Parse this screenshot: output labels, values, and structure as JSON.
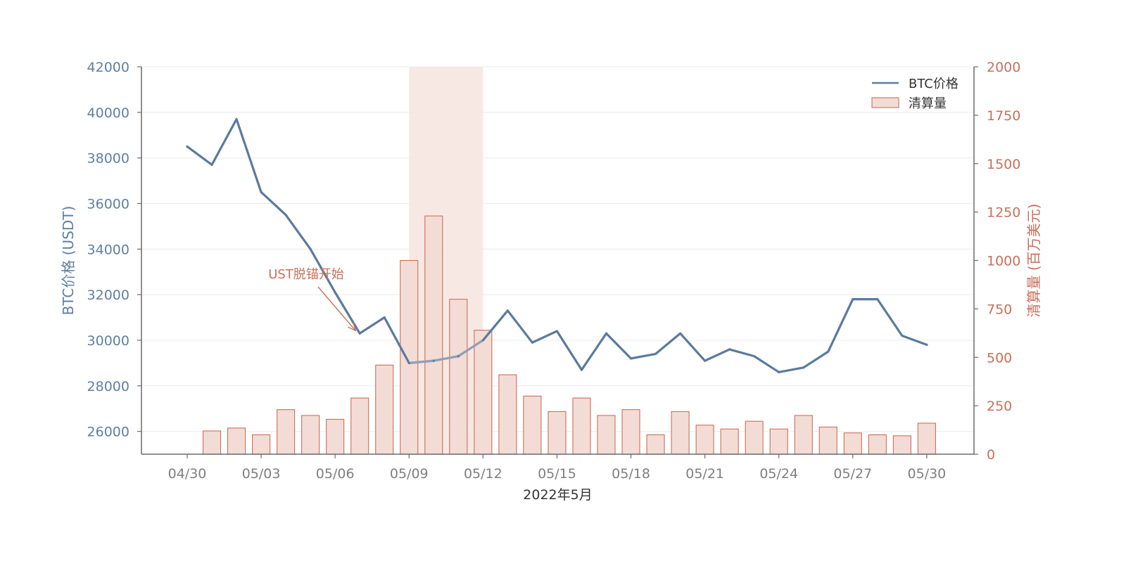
{
  "chart_data": {
    "type": "bar+line",
    "title": "",
    "xlabel": "2022年5月",
    "ylabel_left": "BTC价格 (USDT)",
    "ylabel_right": "清算量 (百万美元)",
    "dates": [
      "04/30",
      "05/01",
      "05/02",
      "05/03",
      "05/04",
      "05/05",
      "05/06",
      "05/07",
      "05/08",
      "05/09",
      "05/10",
      "05/11",
      "05/12",
      "05/13",
      "05/14",
      "05/15",
      "05/16",
      "05/17",
      "05/18",
      "05/19",
      "05/20",
      "05/21",
      "05/22",
      "05/23",
      "05/24",
      "05/25",
      "05/26",
      "05/27",
      "05/28",
      "05/29",
      "05/30"
    ],
    "x_tick_labels": [
      "04/30",
      "05/03",
      "05/06",
      "05/09",
      "05/12",
      "05/15",
      "05/18",
      "05/21",
      "05/24",
      "05/27",
      "05/30"
    ],
    "y_left_ticks": [
      26000,
      28000,
      30000,
      32000,
      34000,
      36000,
      38000,
      40000,
      42000
    ],
    "y_left_range": [
      25000,
      42000
    ],
    "y_right_ticks": [
      0,
      250,
      500,
      750,
      1000,
      1250,
      1500,
      1750,
      2000
    ],
    "y_right_range": [
      0,
      2000
    ],
    "series": [
      {
        "name": "BTC价格",
        "kind": "line",
        "axis": "left",
        "color": "#5b7a9e",
        "values": [
          38500,
          37700,
          39700,
          36500,
          35500,
          34000,
          32100,
          30300,
          31000,
          29000,
          29100,
          29300,
          30000,
          31300,
          29900,
          30400,
          28700,
          30300,
          29200,
          29400,
          30300,
          29100,
          29600,
          29300,
          28600,
          28800,
          29500,
          31800,
          31800,
          30200,
          29800
        ]
      },
      {
        "name": "清算量",
        "kind": "bar",
        "axis": "right",
        "color": "#c9705a",
        "fill": "#f3dcd5",
        "values": [
          null,
          120,
          135,
          100,
          230,
          200,
          180,
          290,
          460,
          1000,
          1230,
          800,
          640,
          410,
          300,
          220,
          290,
          200,
          230,
          100,
          220,
          150,
          130,
          170,
          130,
          200,
          140,
          110,
          100,
          95,
          160
        ]
      }
    ],
    "highlight_span": {
      "from": "05/09",
      "to": "05/12",
      "color": "#f7e6e1"
    },
    "annotation": {
      "text": "UST脱锚开始",
      "points_to": "05/07"
    },
    "legend_position": "top-right",
    "grid": "horizontal"
  }
}
